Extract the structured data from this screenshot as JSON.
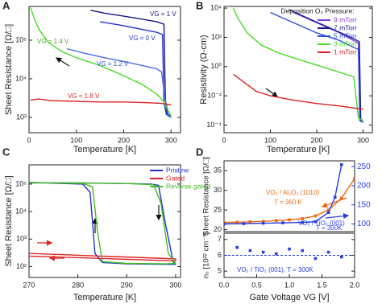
{
  "chart_data": [
    {
      "type": "line",
      "panel_label": "A",
      "xlabel": "Temperature [K]",
      "ylabel": "Sheet Resistance [Ω/□]",
      "xlim": [
        0,
        320
      ],
      "xticks": [
        0,
        100,
        200,
        300
      ],
      "log_y": true,
      "ylim": [
        400,
        750000
      ],
      "yticks": [
        {
          "value": 1000,
          "label": "10³"
        },
        {
          "value": 10000,
          "label": "10⁴"
        },
        {
          "value": 100000,
          "label": "10⁵"
        }
      ],
      "series": [
        {
          "color": "#16168a",
          "x": [
            130,
            160,
            200,
            240,
            270,
            285,
            288,
            292,
            300
          ],
          "values": [
            600000,
            500000,
            420000,
            350000,
            300000,
            260000,
            3000,
            1200,
            1000
          ]
        },
        {
          "color": "#2233cc",
          "x": [
            150,
            190,
            230,
            270,
            282,
            285,
            290,
            300
          ],
          "values": [
            300000,
            250000,
            200000,
            160000,
            140000,
            2500,
            1200,
            1000
          ]
        },
        {
          "color": "#4a6fe0",
          "x": [
            80,
            120,
            160,
            200,
            240,
            270,
            280,
            287,
            295,
            300
          ],
          "values": [
            60000,
            45000,
            35000,
            28000,
            22000,
            18000,
            15000,
            3000,
            1300,
            1000
          ]
        },
        {
          "color": "#44dd22",
          "x": [
            3,
            10,
            20,
            40,
            70,
            100,
            150,
            200,
            240,
            270,
            285,
            295,
            300
          ],
          "values": [
            700000,
            400000,
            200000,
            90000,
            50000,
            35000,
            22000,
            12000,
            7000,
            4000,
            2500,
            1400,
            1100
          ]
        },
        {
          "color": "#dd2222",
          "x": [
            3,
            20,
            50,
            100,
            150,
            200,
            250,
            280,
            300
          ],
          "values": [
            2800,
            3000,
            2700,
            2600,
            2500,
            2500,
            2400,
            2300,
            2100
          ]
        }
      ],
      "annotations": [
        {
          "text": "VG = 1 V",
          "color": "#16168a"
        },
        {
          "text": "VG = 0 V",
          "color": "#2233cc"
        },
        {
          "text": "VG = 1.4 V",
          "color": "#44aa22"
        },
        {
          "text": "VG = 1.2 V",
          "color": "#2a4fe0"
        },
        {
          "text": "VG = 1.8 V",
          "color": "#dd2222"
        }
      ]
    },
    {
      "type": "line",
      "panel_label": "B",
      "xlabel": "Temperature [K]",
      "ylabel": "Resistivity (Ω-cm)",
      "xlim": [
        0,
        320
      ],
      "xticks": [
        0,
        100,
        200,
        300
      ],
      "log_y": true,
      "ylim": [
        3e-05,
        13000
      ],
      "yticks": [
        {
          "value": 0.0001,
          "label": "10⁻⁴"
        },
        {
          "value": 0.01,
          "label": "10⁻²"
        },
        {
          "value": 1,
          "label": "10⁰"
        },
        {
          "value": 100,
          "label": "10²"
        },
        {
          "value": 10000,
          "label": "10⁴"
        }
      ],
      "legend_title": "Deposition O₂ Pressure:",
      "series": [
        {
          "name": "9 mTorr",
          "color": "#7b3fe4",
          "x": [
            150,
            200,
            250,
            280,
            290,
            293,
            300
          ],
          "values": [
            5000,
            1000,
            200,
            60,
            40,
            0.0003,
            0.0002
          ]
        },
        {
          "name": "7 mTorr",
          "color": "#1a1a9a",
          "x": [
            140,
            190,
            240,
            280,
            292,
            295,
            300
          ],
          "values": [
            8000,
            1500,
            300,
            80,
            50,
            0.0002,
            0.00015
          ]
        },
        {
          "name": "5 mTorr",
          "color": "#2a4fe0",
          "x": [
            100,
            150,
            200,
            250,
            280,
            290,
            293,
            300
          ],
          "values": [
            5000,
            1000,
            200,
            60,
            20,
            15,
            0.0002,
            0.00015
          ]
        },
        {
          "name": "3 mTorr",
          "color": "#44dd22",
          "x": [
            20,
            30,
            50,
            80,
            120,
            180,
            240,
            280,
            290,
            300
          ],
          "values": [
            10000,
            2000,
            200,
            30,
            8,
            2,
            0.5,
            0.2,
            0.0003,
            0.0002
          ]
        },
        {
          "name": "1 mTorr",
          "color": "#dd2222",
          "x": [
            20,
            40,
            70,
            100,
            150,
            200,
            250,
            300
          ],
          "values": [
            0.3,
            0.1,
            0.02,
            0.01,
            0.005,
            0.003,
            0.002,
            0.0012
          ]
        }
      ]
    },
    {
      "type": "line",
      "panel_label": "C",
      "xlabel": "Temperature [K]",
      "ylabel": "Sheet Resistance [Ω/□]",
      "xlim": [
        270,
        301
      ],
      "xticks": [
        270,
        280,
        290,
        300
      ],
      "log_y": true,
      "ylim": [
        40,
        500000
      ],
      "yticks": [
        {
          "value": 100,
          "label": "10²"
        },
        {
          "value": 1000,
          "label": "10³"
        },
        {
          "value": 10000,
          "label": "10⁴"
        },
        {
          "value": 100000,
          "label": "10⁵"
        }
      ],
      "series": [
        {
          "name": "Pristine",
          "color": "#2233cc",
          "x": [
            270,
            280,
            290,
            295,
            296.5,
            298,
            299.5,
            300,
            298,
            290,
            285,
            283.5,
            282.5,
            281,
            270
          ],
          "values": [
            110000,
            110000,
            105000,
            100000,
            90000,
            3000,
            150,
            120,
            120,
            125,
            140,
            300,
            50000,
            100000,
            115000
          ]
        },
        {
          "name": "Gated",
          "color": "#dd2222",
          "x": [
            270,
            300,
            300,
            270
          ],
          "values": [
            300,
            190,
            160,
            240
          ]
        },
        {
          "name": "Reverse gated",
          "color": "#44bb22",
          "x": [
            270,
            280,
            290,
            295.5,
            297,
            298.5,
            300,
            298,
            290,
            285,
            284,
            283,
            281,
            270
          ],
          "values": [
            112000,
            110000,
            105000,
            95000,
            20000,
            300,
            130,
            125,
            130,
            150,
            2000,
            80000,
            105000,
            115000
          ]
        }
      ]
    },
    {
      "type": "line",
      "panel_label": "D",
      "ylabel": "Sheet Resistance [Ω/□]",
      "xlim": [
        0,
        2
      ],
      "ylim": [
        19.5,
        37.5
      ],
      "yticks": [
        20,
        25,
        30,
        35
      ],
      "y2lim": [
        80,
        265
      ],
      "y2ticks": [
        100,
        150,
        200,
        250
      ],
      "y2_color": "#2a3fe0",
      "markers": true,
      "series": [
        {
          "color": "#ee6a10",
          "x": [
            0,
            0.2,
            0.4,
            0.6,
            0.8,
            1.0,
            1.2,
            1.4,
            1.6,
            1.8,
            2.0
          ],
          "values": [
            21.8,
            21.9,
            22,
            22.1,
            22.3,
            22.5,
            22.8,
            23.5,
            25,
            28,
            33
          ]
        },
        {
          "color": "#2a3fe0",
          "axis": "y2",
          "x": [
            0,
            0.3,
            0.6,
            0.9,
            1.2,
            1.4,
            1.6,
            1.7,
            1.8
          ],
          "values": [
            100,
            101,
            102,
            103,
            104,
            106,
            130,
            170,
            255
          ]
        }
      ],
      "annotations": [
        {
          "text": "VO₂ / Al₂O₃ (1010)",
          "color": "#ee6a10"
        },
        {
          "text": "T = 360 K",
          "color": "#ee6a10"
        },
        {
          "text": "VO₂ / TiO₂ (001)",
          "color": "#2a3fe0"
        },
        {
          "text": "T = 300K",
          "color": "#2a3fe0"
        }
      ]
    },
    {
      "type": "scatter",
      "xlabel": "Gate Voltage VG [V]",
      "ylabel": "nₛ [10²² cm⁻³]",
      "xlim": [
        0,
        2
      ],
      "xticks": [
        {
          "value": 0,
          "label": "0.0"
        },
        {
          "value": 0.5,
          "label": "0.5"
        },
        {
          "value": 1,
          "label": "1.0"
        },
        {
          "value": 1.5,
          "label": "1.5"
        },
        {
          "value": 2,
          "label": "2.0"
        }
      ],
      "ylim": [
        4.6,
        7.4
      ],
      "yticks": [
        5,
        6,
        7
      ],
      "reference_line": 6,
      "series": [
        {
          "color": "#2a3fe0",
          "x": [
            0.2,
            0.4,
            0.6,
            0.8,
            1.0,
            1.2,
            1.4,
            1.6,
            1.8
          ],
          "values": [
            6.5,
            6.3,
            6.2,
            6.1,
            6.4,
            6.3,
            5.8,
            6.2,
            5.9
          ]
        }
      ],
      "annotations": [
        {
          "text": "VO₂ / TiO₂ (001), T = 300K",
          "color": "#2a3fe0"
        }
      ]
    }
  ]
}
